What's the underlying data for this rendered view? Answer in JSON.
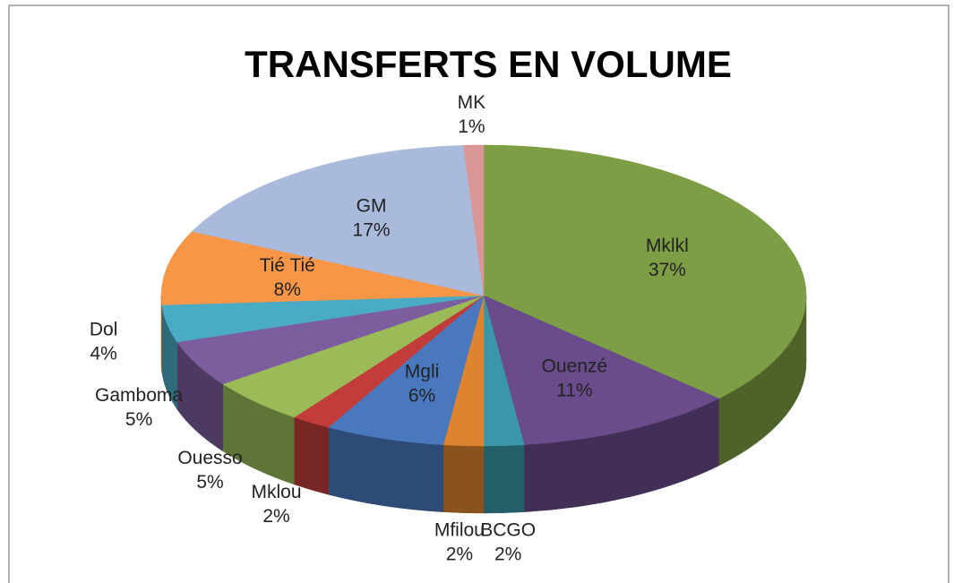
{
  "chart_data": {
    "type": "pie",
    "title": "TRANSFERTS EN VOLUME",
    "categories": [
      "Mklkl",
      "Ouenzé",
      "BCGO",
      "Mfilou",
      "Mgli",
      "Mklou",
      "Ouesso",
      "Gamboma",
      "Dol",
      "Tié Tié",
      "GM",
      "MK"
    ],
    "values": [
      37,
      11,
      2,
      2,
      6,
      2,
      5,
      5,
      4,
      8,
      17,
      1
    ],
    "value_labels": [
      "37%",
      "11%",
      "2%",
      "2%",
      "6%",
      "2%",
      "5%",
      "5%",
      "4%",
      "8%",
      "17%",
      "1%"
    ],
    "colors": [
      "#7d9e44",
      "#6a4b8c",
      "#3a97aa",
      "#de842f",
      "#4a78be",
      "#c23d3a",
      "#9bbb59",
      "#7c5e9f",
      "#4aabc5",
      "#f79646",
      "#a9badd",
      "#d99694"
    ]
  }
}
